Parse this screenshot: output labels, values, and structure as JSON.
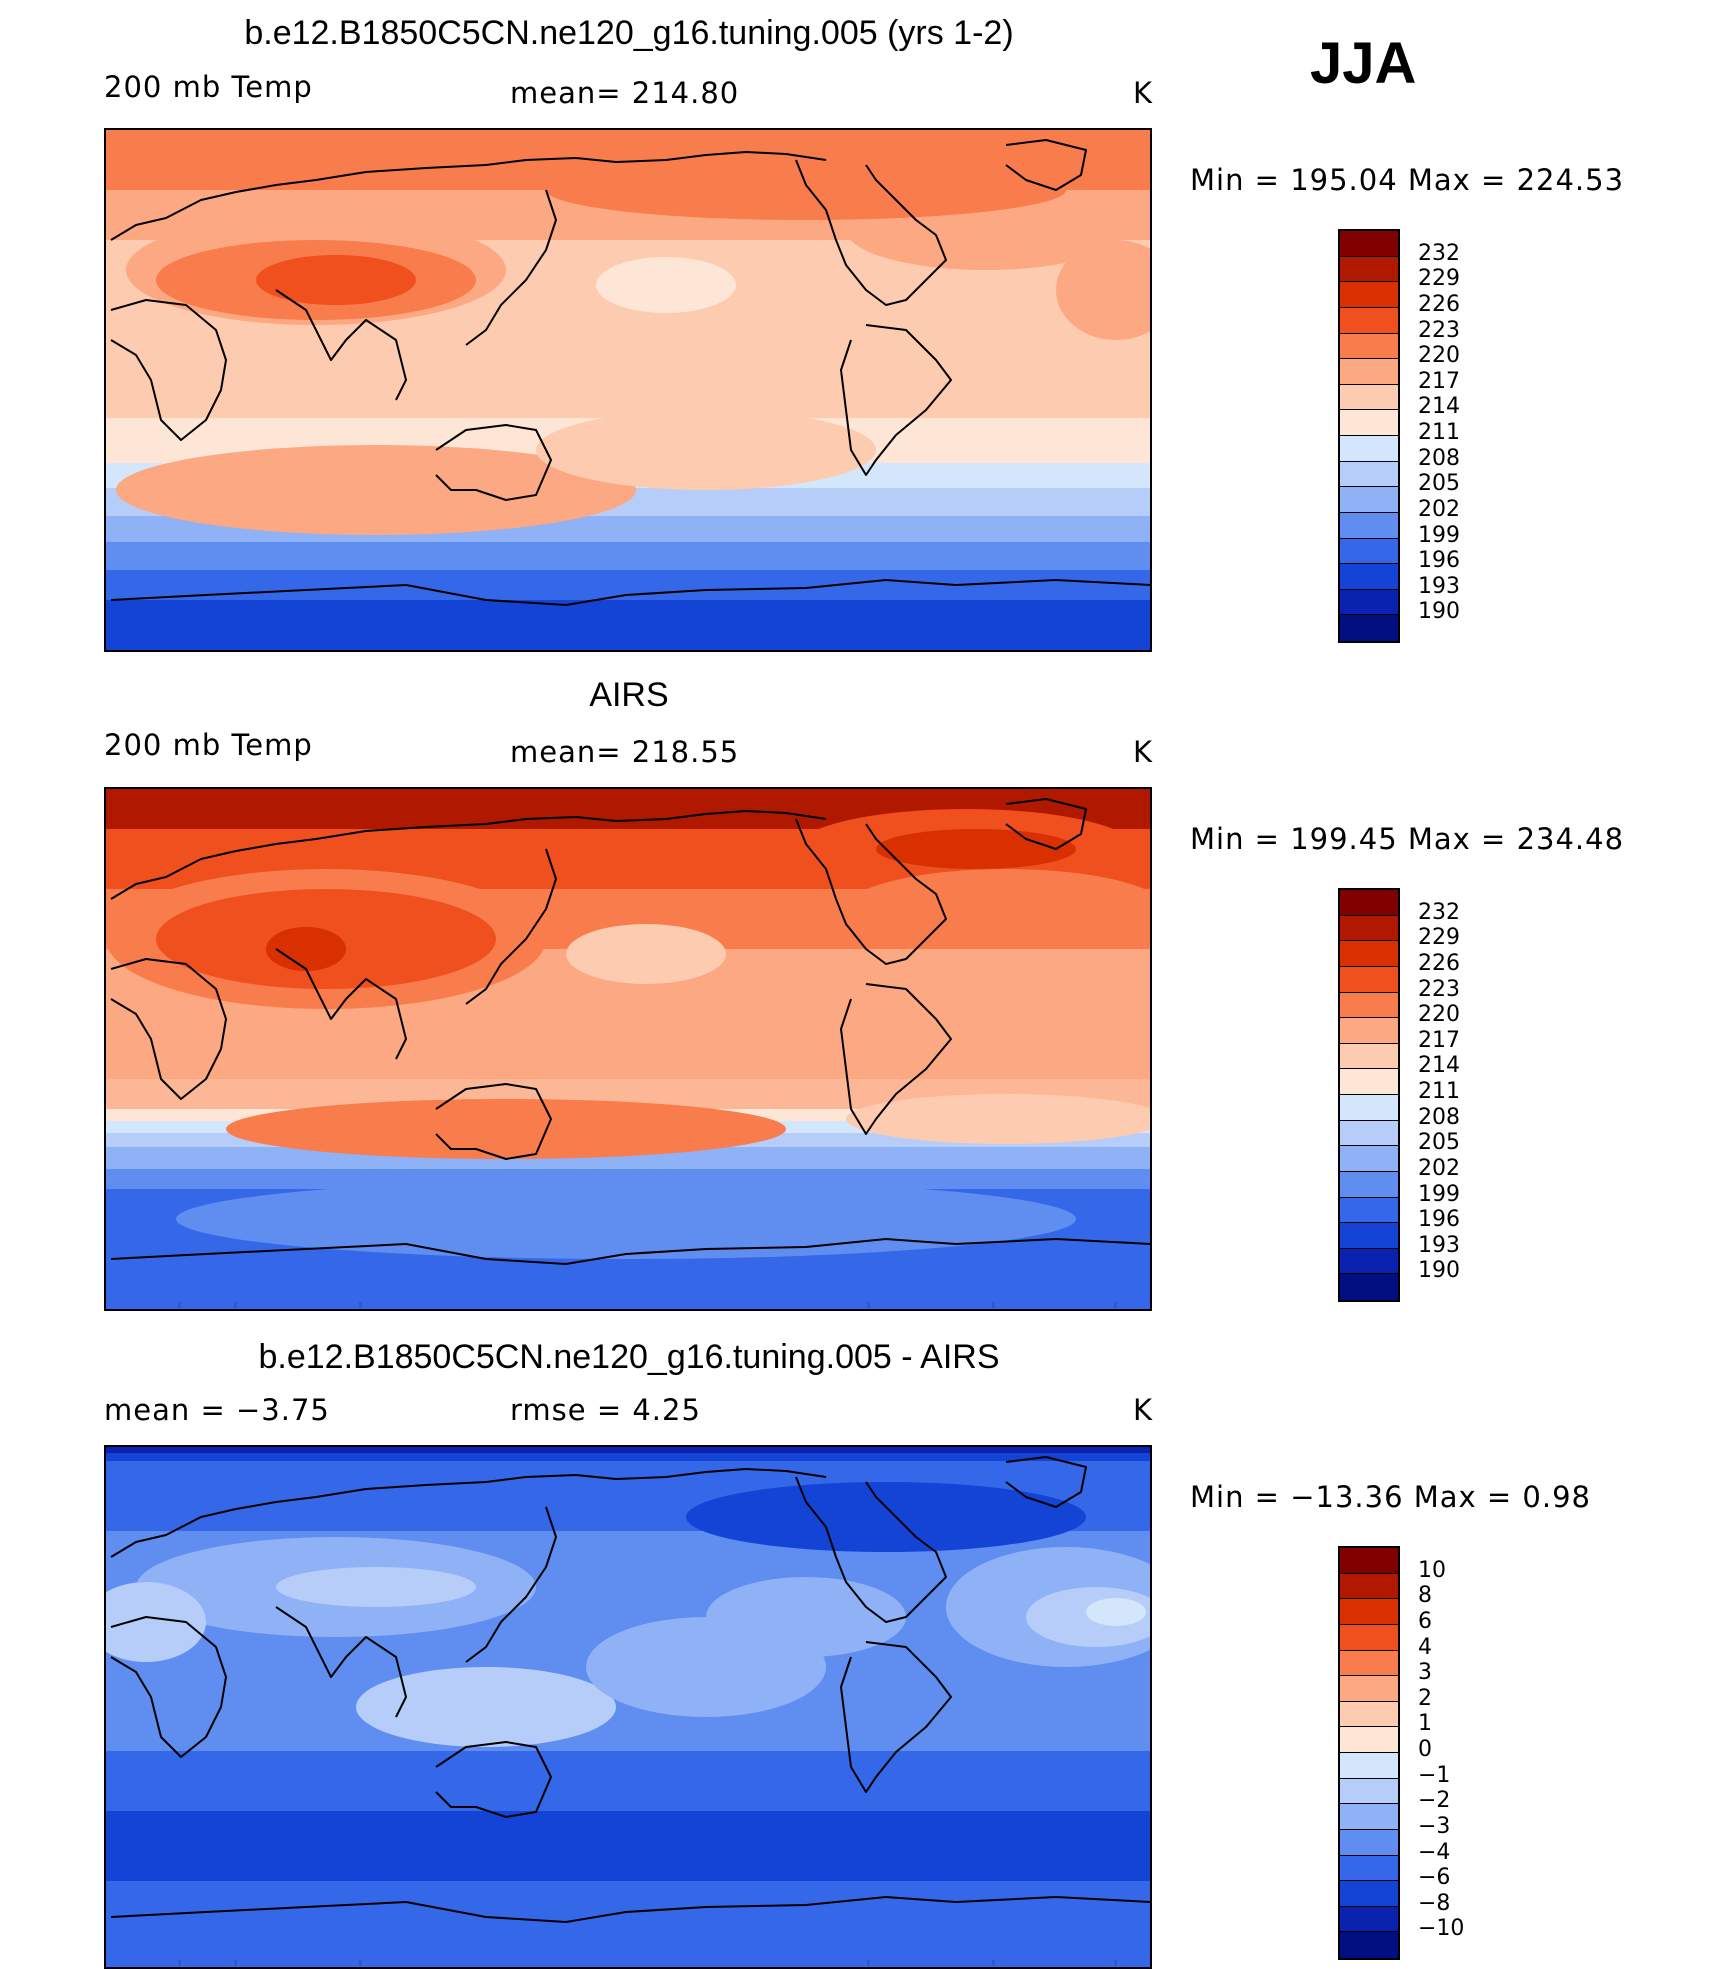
{
  "season": "JJA",
  "panels": [
    {
      "title": "b.e12.B1850C5CN.ne120_g16.tuning.005 (yrs 1-2)",
      "left_label": "200 mb Temp",
      "center_label": "mean= 214.80",
      "units": "K",
      "minmax": "Min  =  195.04  Max  =  224.53",
      "field": "model",
      "colorbar": {
        "labels": [
          "232",
          "229",
          "226",
          "223",
          "220",
          "217",
          "214",
          "211",
          "208",
          "205",
          "202",
          "199",
          "196",
          "193",
          "190"
        ],
        "colors": [
          "#800000",
          "#b01800",
          "#d83000",
          "#f0501e",
          "#f87c4c",
          "#fca882",
          "#fdcbb0",
          "#fde6d5",
          "#d4e6fb",
          "#b5cdf8",
          "#8fb1f5",
          "#5f8ef0",
          "#3468e8",
          "#1444d6",
          "#0a22b0",
          "#001080"
        ]
      }
    },
    {
      "title": "AIRS",
      "left_label": "200 mb Temp",
      "center_label": "mean= 218.55",
      "units": "K",
      "minmax": "Min  =  199.45  Max  =  234.48",
      "field": "obs",
      "colorbar": {
        "labels": [
          "232",
          "229",
          "226",
          "223",
          "220",
          "217",
          "214",
          "211",
          "208",
          "205",
          "202",
          "199",
          "196",
          "193",
          "190"
        ],
        "colors": [
          "#800000",
          "#b01800",
          "#d83000",
          "#f0501e",
          "#f87c4c",
          "#fca882",
          "#fdcbb0",
          "#fde6d5",
          "#d4e6fb",
          "#b5cdf8",
          "#8fb1f5",
          "#5f8ef0",
          "#3468e8",
          "#1444d6",
          "#0a22b0",
          "#001080"
        ]
      }
    },
    {
      "title": "b.e12.B1850C5CN.ne120_g16.tuning.005 - AIRS",
      "left_label": "mean  =    −3.75",
      "center_label": "rmse  =     4.25",
      "units": "K",
      "minmax": "Min  =  −13.36  Max  =     0.98",
      "field": "diff",
      "colorbar": {
        "labels": [
          "10",
          "8",
          "6",
          "4",
          "3",
          "2",
          "1",
          "0",
          "−1",
          "−2",
          "−3",
          "−4",
          "−6",
          "−8",
          "−10"
        ],
        "colors": [
          "#800000",
          "#b01800",
          "#d83000",
          "#f0501e",
          "#f87c4c",
          "#fca882",
          "#fdcbb0",
          "#fde6d5",
          "#d4e6fb",
          "#b5cdf8",
          "#8fb1f5",
          "#5f8ef0",
          "#3468e8",
          "#1444d6",
          "#0a22b0",
          "#001080"
        ]
      }
    }
  ]
}
